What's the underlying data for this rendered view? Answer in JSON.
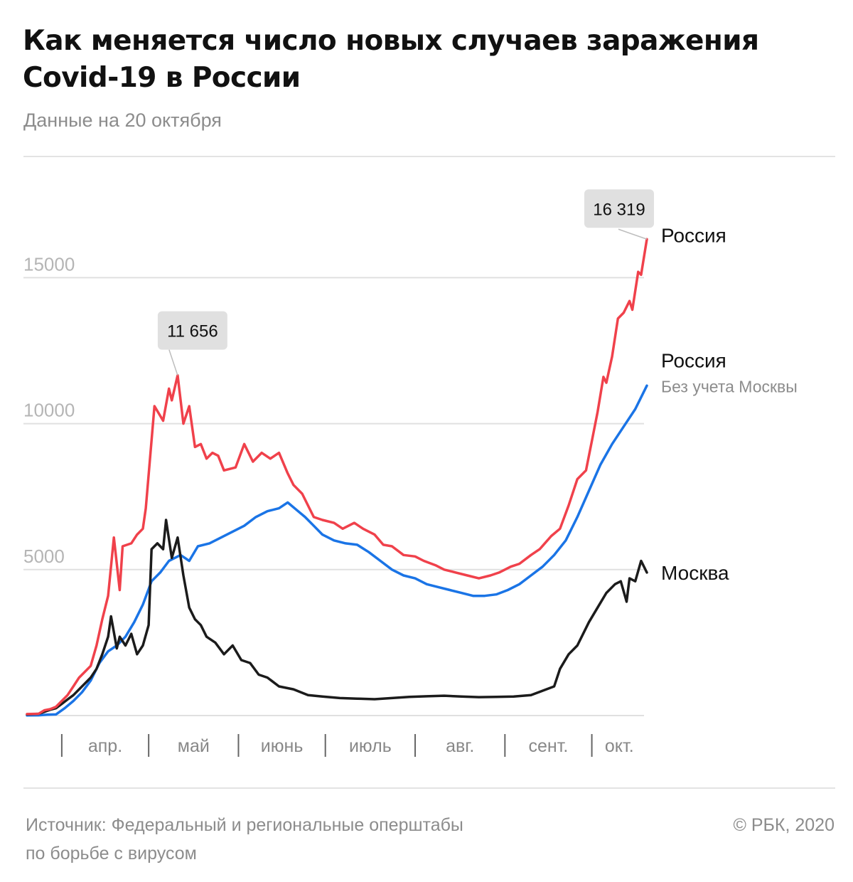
{
  "title": "Как меняется число новых случаев заражения Covid-19 в России",
  "subtitle": "Данные на 20 октября",
  "source": {
    "line1": "Источник: Федеральный и региональные оперштабы",
    "line2": "по борьбе с вирусом"
  },
  "credit": "© РБК, 2020",
  "colors": {
    "russia": "#f0414b",
    "russia_ex_moscow": "#1a74e6",
    "moscow": "#1b1b1b",
    "grid": "#e0e0e0",
    "callout_bg": "#e0e0e0"
  },
  "chart_data": {
    "type": "line",
    "x_start": "2020-03-20",
    "x_end": "2020-10-20",
    "ylim": [
      0,
      17500
    ],
    "grid": true,
    "y_ticks": [
      "5000",
      "10000",
      "15000"
    ],
    "x_tick_labels": [
      "апр.",
      "май",
      "июнь",
      "июль",
      "авг.",
      "сент.",
      "окт."
    ],
    "series": [
      {
        "name": "Россия",
        "key": "russia",
        "values": [
          [
            "2020-03-20",
            50
          ],
          [
            "2020-03-24",
            60
          ],
          [
            "2020-03-26",
            180
          ],
          [
            "2020-03-28",
            220
          ],
          [
            "2020-03-30",
            300
          ],
          [
            "2020-04-01",
            500
          ],
          [
            "2020-04-03",
            700
          ],
          [
            "2020-04-05",
            1000
          ],
          [
            "2020-04-07",
            1300
          ],
          [
            "2020-04-09",
            1500
          ],
          [
            "2020-04-11",
            1700
          ],
          [
            "2020-04-13",
            2400
          ],
          [
            "2020-04-15",
            3300
          ],
          [
            "2020-04-17",
            4100
          ],
          [
            "2020-04-19",
            6100
          ],
          [
            "2020-04-21",
            4300
          ],
          [
            "2020-04-22",
            5800
          ],
          [
            "2020-04-25",
            5900
          ],
          [
            "2020-04-27",
            6200
          ],
          [
            "2020-04-29",
            6400
          ],
          [
            "2020-04-30",
            7100
          ],
          [
            "2020-05-03",
            10600
          ],
          [
            "2020-05-06",
            10100
          ],
          [
            "2020-05-08",
            11200
          ],
          [
            "2020-05-09",
            10800
          ],
          [
            "2020-05-11",
            11656
          ],
          [
            "2020-05-13",
            10000
          ],
          [
            "2020-05-15",
            10600
          ],
          [
            "2020-05-17",
            9200
          ],
          [
            "2020-05-19",
            9300
          ],
          [
            "2020-05-21",
            8800
          ],
          [
            "2020-05-23",
            9000
          ],
          [
            "2020-05-25",
            8900
          ],
          [
            "2020-05-27",
            8400
          ],
          [
            "2020-05-31",
            8500
          ],
          [
            "2020-06-03",
            9300
          ],
          [
            "2020-06-06",
            8700
          ],
          [
            "2020-06-09",
            9000
          ],
          [
            "2020-06-12",
            8800
          ],
          [
            "2020-06-15",
            9000
          ],
          [
            "2020-06-18",
            8300
          ],
          [
            "2020-06-20",
            7900
          ],
          [
            "2020-06-23",
            7600
          ],
          [
            "2020-06-27",
            6800
          ],
          [
            "2020-06-30",
            6700
          ],
          [
            "2020-07-04",
            6600
          ],
          [
            "2020-07-07",
            6400
          ],
          [
            "2020-07-11",
            6600
          ],
          [
            "2020-07-14",
            6400
          ],
          [
            "2020-07-18",
            6200
          ],
          [
            "2020-07-21",
            5850
          ],
          [
            "2020-07-24",
            5800
          ],
          [
            "2020-07-28",
            5500
          ],
          [
            "2020-08-01",
            5450
          ],
          [
            "2020-08-04",
            5300
          ],
          [
            "2020-08-08",
            5150
          ],
          [
            "2020-08-11",
            5000
          ],
          [
            "2020-08-15",
            4900
          ],
          [
            "2020-08-19",
            4800
          ],
          [
            "2020-08-23",
            4700
          ],
          [
            "2020-08-27",
            4800
          ],
          [
            "2020-08-30",
            4900
          ],
          [
            "2020-09-03",
            5100
          ],
          [
            "2020-09-06",
            5200
          ],
          [
            "2020-09-10",
            5500
          ],
          [
            "2020-09-13",
            5700
          ],
          [
            "2020-09-17",
            6150
          ],
          [
            "2020-09-20",
            6400
          ],
          [
            "2020-09-23",
            7200
          ],
          [
            "2020-09-26",
            8100
          ],
          [
            "2020-09-29",
            8400
          ],
          [
            "2020-10-01",
            9400
          ],
          [
            "2020-10-03",
            10400
          ],
          [
            "2020-10-05",
            11600
          ],
          [
            "2020-10-06",
            11400
          ],
          [
            "2020-10-08",
            12300
          ],
          [
            "2020-10-10",
            13600
          ],
          [
            "2020-10-12",
            13800
          ],
          [
            "2020-10-14",
            14200
          ],
          [
            "2020-10-15",
            13900
          ],
          [
            "2020-10-17",
            15200
          ],
          [
            "2020-10-18",
            15100
          ],
          [
            "2020-10-20",
            16319
          ]
        ]
      },
      {
        "name": "Россия",
        "subtitle": "Без учета Москвы",
        "key": "russia_ex_moscow",
        "values": [
          [
            "2020-03-20",
            5
          ],
          [
            "2020-03-24",
            10
          ],
          [
            "2020-03-27",
            30
          ],
          [
            "2020-03-30",
            40
          ],
          [
            "2020-04-02",
            250
          ],
          [
            "2020-04-05",
            500
          ],
          [
            "2020-04-08",
            800
          ],
          [
            "2020-04-11",
            1200
          ],
          [
            "2020-04-14",
            1800
          ],
          [
            "2020-04-17",
            2200
          ],
          [
            "2020-04-20",
            2400
          ],
          [
            "2020-04-23",
            2700
          ],
          [
            "2020-04-26",
            3200
          ],
          [
            "2020-04-29",
            3800
          ],
          [
            "2020-05-02",
            4600
          ],
          [
            "2020-05-05",
            4900
          ],
          [
            "2020-05-08",
            5300
          ],
          [
            "2020-05-12",
            5500
          ],
          [
            "2020-05-15",
            5300
          ],
          [
            "2020-05-18",
            5800
          ],
          [
            "2020-05-22",
            5900
          ],
          [
            "2020-05-26",
            6100
          ],
          [
            "2020-05-30",
            6300
          ],
          [
            "2020-06-03",
            6500
          ],
          [
            "2020-06-07",
            6800
          ],
          [
            "2020-06-11",
            7000
          ],
          [
            "2020-06-15",
            7100
          ],
          [
            "2020-06-18",
            7300
          ],
          [
            "2020-06-21",
            7050
          ],
          [
            "2020-06-24",
            6800
          ],
          [
            "2020-06-27",
            6500
          ],
          [
            "2020-06-30",
            6200
          ],
          [
            "2020-07-04",
            6000
          ],
          [
            "2020-07-08",
            5900
          ],
          [
            "2020-07-12",
            5850
          ],
          [
            "2020-07-16",
            5600
          ],
          [
            "2020-07-20",
            5300
          ],
          [
            "2020-07-24",
            5000
          ],
          [
            "2020-07-28",
            4800
          ],
          [
            "2020-08-01",
            4700
          ],
          [
            "2020-08-05",
            4500
          ],
          [
            "2020-08-09",
            4400
          ],
          [
            "2020-08-13",
            4300
          ],
          [
            "2020-08-17",
            4200
          ],
          [
            "2020-08-21",
            4100
          ],
          [
            "2020-08-25",
            4100
          ],
          [
            "2020-08-29",
            4150
          ],
          [
            "2020-09-02",
            4300
          ],
          [
            "2020-09-06",
            4500
          ],
          [
            "2020-09-10",
            4800
          ],
          [
            "2020-09-14",
            5100
          ],
          [
            "2020-09-18",
            5500
          ],
          [
            "2020-09-22",
            6000
          ],
          [
            "2020-09-26",
            6800
          ],
          [
            "2020-09-30",
            7700
          ],
          [
            "2020-10-04",
            8600
          ],
          [
            "2020-10-08",
            9300
          ],
          [
            "2020-10-12",
            9900
          ],
          [
            "2020-10-16",
            10500
          ],
          [
            "2020-10-20",
            11300
          ]
        ]
      },
      {
        "name": "Москва",
        "key": "moscow",
        "values": [
          [
            "2020-03-20",
            40
          ],
          [
            "2020-03-24",
            60
          ],
          [
            "2020-03-26",
            130
          ],
          [
            "2020-03-28",
            200
          ],
          [
            "2020-03-30",
            250
          ],
          [
            "2020-04-01",
            400
          ],
          [
            "2020-04-03",
            550
          ],
          [
            "2020-04-05",
            700
          ],
          [
            "2020-04-07",
            900
          ],
          [
            "2020-04-09",
            1100
          ],
          [
            "2020-04-11",
            1300
          ],
          [
            "2020-04-13",
            1600
          ],
          [
            "2020-04-15",
            2100
          ],
          [
            "2020-04-17",
            2700
          ],
          [
            "2020-04-18",
            3400
          ],
          [
            "2020-04-20",
            2300
          ],
          [
            "2020-04-21",
            2700
          ],
          [
            "2020-04-23",
            2400
          ],
          [
            "2020-04-25",
            2800
          ],
          [
            "2020-04-27",
            2100
          ],
          [
            "2020-04-29",
            2400
          ],
          [
            "2020-05-01",
            3100
          ],
          [
            "2020-05-02",
            5700
          ],
          [
            "2020-05-04",
            5900
          ],
          [
            "2020-05-06",
            5700
          ],
          [
            "2020-05-07",
            6700
          ],
          [
            "2020-05-09",
            5400
          ],
          [
            "2020-05-11",
            6100
          ],
          [
            "2020-05-13",
            4800
          ],
          [
            "2020-05-15",
            3700
          ],
          [
            "2020-05-17",
            3300
          ],
          [
            "2020-05-19",
            3100
          ],
          [
            "2020-05-21",
            2700
          ],
          [
            "2020-05-24",
            2500
          ],
          [
            "2020-05-27",
            2100
          ],
          [
            "2020-05-30",
            2400
          ],
          [
            "2020-06-02",
            1900
          ],
          [
            "2020-06-05",
            1800
          ],
          [
            "2020-06-08",
            1400
          ],
          [
            "2020-06-11",
            1300
          ],
          [
            "2020-06-15",
            1000
          ],
          [
            "2020-06-20",
            900
          ],
          [
            "2020-06-25",
            700
          ],
          [
            "2020-06-30",
            650
          ],
          [
            "2020-07-06",
            600
          ],
          [
            "2020-07-12",
            580
          ],
          [
            "2020-07-18",
            560
          ],
          [
            "2020-07-24",
            600
          ],
          [
            "2020-07-30",
            640
          ],
          [
            "2020-08-05",
            660
          ],
          [
            "2020-08-11",
            680
          ],
          [
            "2020-08-17",
            650
          ],
          [
            "2020-08-23",
            630
          ],
          [
            "2020-08-29",
            640
          ],
          [
            "2020-09-04",
            650
          ],
          [
            "2020-09-10",
            700
          ],
          [
            "2020-09-14",
            850
          ],
          [
            "2020-09-18",
            1000
          ],
          [
            "2020-09-20",
            1600
          ],
          [
            "2020-09-23",
            2100
          ],
          [
            "2020-09-26",
            2400
          ],
          [
            "2020-09-30",
            3200
          ],
          [
            "2020-10-03",
            3700
          ],
          [
            "2020-10-06",
            4200
          ],
          [
            "2020-10-09",
            4500
          ],
          [
            "2020-10-11",
            4600
          ],
          [
            "2020-10-13",
            3900
          ],
          [
            "2020-10-14",
            4700
          ],
          [
            "2020-10-16",
            4600
          ],
          [
            "2020-10-18",
            5300
          ],
          [
            "2020-10-20",
            4900
          ]
        ]
      }
    ],
    "callouts": [
      {
        "series": "russia",
        "date": "2020-05-11",
        "label": "11 656"
      },
      {
        "series": "russia",
        "date": "2020-10-20",
        "label": "16 319"
      }
    ]
  }
}
